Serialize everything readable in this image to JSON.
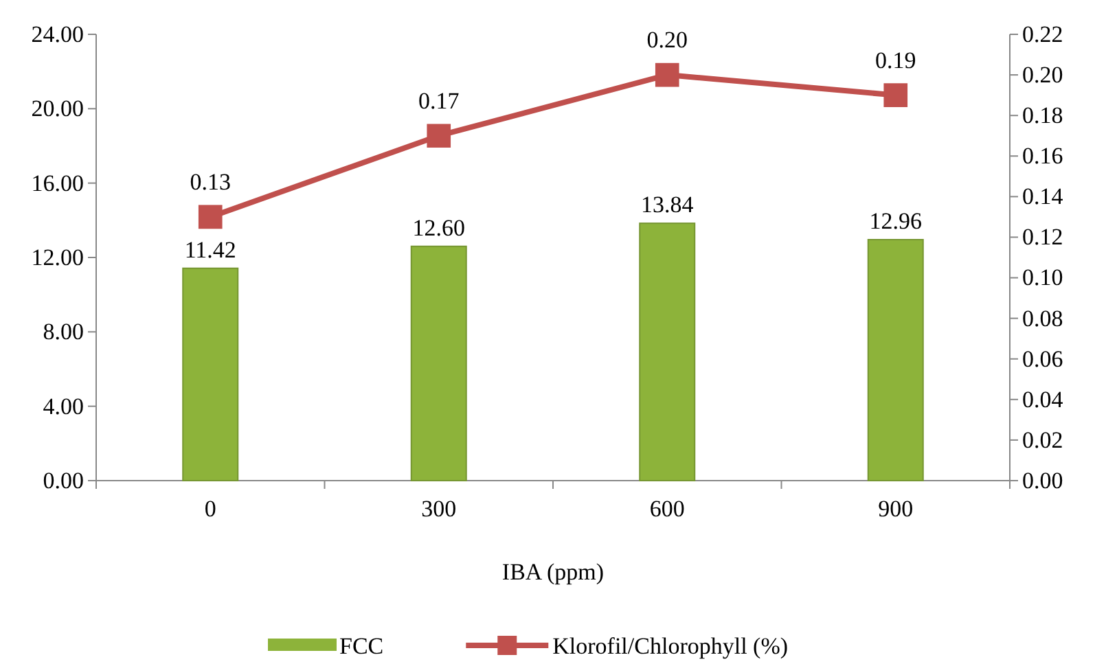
{
  "chart_data": {
    "type": "bar",
    "xlabel": "IBA (ppm)",
    "categories": [
      "0",
      "300",
      "600",
      "900"
    ],
    "series": [
      {
        "name": "FCC",
        "color": "#8db33a",
        "values": [
          11.42,
          12.6,
          13.84,
          12.96
        ],
        "value_labels": [
          "11.42",
          "12.60",
          "13.84",
          "12.96"
        ]
      },
      {
        "name": "Klorofil/Chlorophyll (%)",
        "type": "line",
        "axis": "y2",
        "color": "#c0504d",
        "values": [
          0.13,
          0.17,
          0.2,
          0.19
        ],
        "value_labels": [
          "0.13",
          "0.17",
          "0.20",
          "0.19"
        ]
      }
    ],
    "ylim": [
      0,
      24
    ],
    "yticks": [
      {
        "value": 0,
        "label": "0.00"
      },
      {
        "value": 4,
        "label": "4.00"
      },
      {
        "value": 8,
        "label": "8.00"
      },
      {
        "value": 12,
        "label": "12.00"
      },
      {
        "value": 16,
        "label": "16.00"
      },
      {
        "value": 20,
        "label": "20.00"
      },
      {
        "value": 24,
        "label": "24.00"
      }
    ],
    "y2lim": [
      0,
      0.22
    ],
    "y2ticks": [
      {
        "value": 0,
        "label": "0.00"
      },
      {
        "value": 0.02,
        "label": "0.02"
      },
      {
        "value": 0.04,
        "label": "0.04"
      },
      {
        "value": 0.06,
        "label": "0.06"
      },
      {
        "value": 0.08,
        "label": "0.08"
      },
      {
        "value": 0.1,
        "label": "0.10"
      },
      {
        "value": 0.12,
        "label": "0.12"
      },
      {
        "value": 0.14,
        "label": "0.14"
      },
      {
        "value": 0.16,
        "label": "0.16"
      },
      {
        "value": 0.18,
        "label": "0.18"
      },
      {
        "value": 0.2,
        "label": "0.20"
      },
      {
        "value": 0.22,
        "label": "0.22"
      }
    ],
    "marker": "square",
    "line_style": "solid",
    "legend": "bottom",
    "grid": false
  }
}
